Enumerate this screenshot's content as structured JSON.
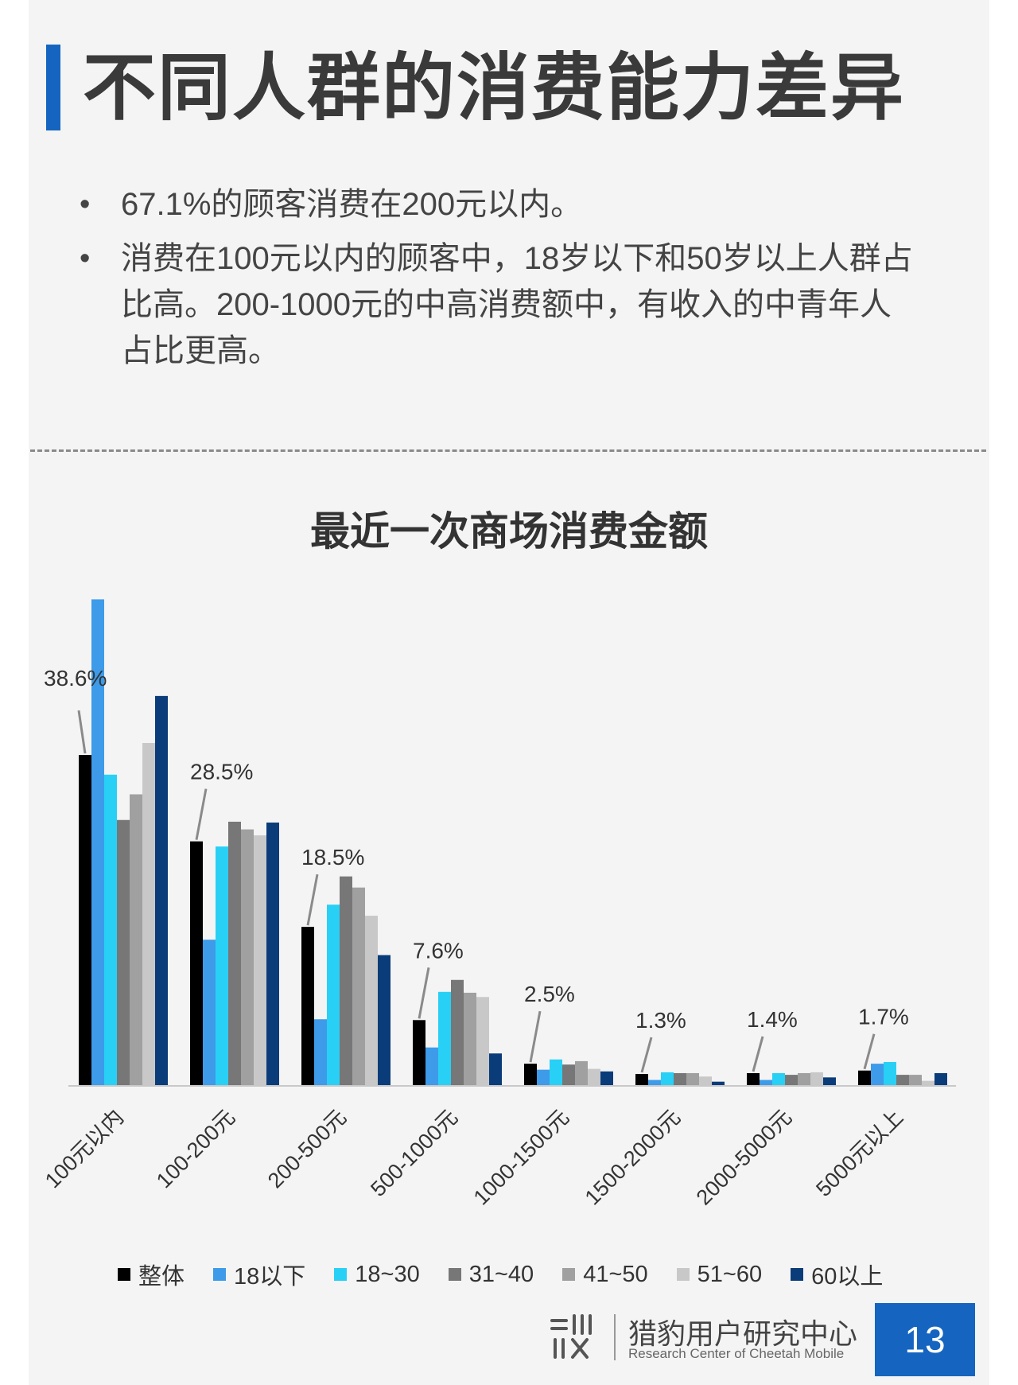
{
  "header": {
    "title": "不同人群的消费能力差异"
  },
  "bullets": [
    {
      "marker": "•",
      "text": "67.1%的顾客消费在200元以内。"
    },
    {
      "marker": "•",
      "text": "消费在100元以内的顾客中，18岁以下和50岁以上人群占比高。200-1000元的中高消费额中，有收入的中青年人占比更高。"
    }
  ],
  "chart_data": {
    "type": "bar",
    "title": "最近一次商场消费金额",
    "categories": [
      "100元以内",
      "100-200元",
      "200-500元",
      "500-1000元",
      "1000-1500元",
      "1500-2000元",
      "2000-5000元",
      "5000元以上"
    ],
    "overall_labels": [
      "38.6%",
      "28.5%",
      "18.5%",
      "7.6%",
      "2.5%",
      "1.3%",
      "1.4%",
      "1.7%"
    ],
    "xlabel": "",
    "ylabel": "",
    "ylim": [
      0,
      60
    ],
    "grid": false,
    "legend_position": "bottom",
    "series": [
      {
        "name": "整体",
        "color": "#000000",
        "values": [
          38.6,
          28.5,
          18.5,
          7.6,
          2.5,
          1.3,
          1.4,
          1.7
        ]
      },
      {
        "name": "18以下",
        "color": "#3d9be9",
        "values": [
          56.8,
          17.0,
          7.7,
          4.4,
          1.8,
          0.6,
          0.6,
          2.5
        ]
      },
      {
        "name": "18~30",
        "color": "#29d0f5",
        "values": [
          36.3,
          27.9,
          21.1,
          10.9,
          3.0,
          1.5,
          1.4,
          2.7
        ]
      },
      {
        "name": "31~40",
        "color": "#777777",
        "values": [
          31.0,
          30.8,
          24.4,
          12.3,
          2.4,
          1.4,
          1.2,
          1.2
        ]
      },
      {
        "name": "41~50",
        "color": "#a0a0a0",
        "values": [
          34.0,
          29.9,
          23.1,
          10.8,
          2.8,
          1.4,
          1.4,
          1.2
        ]
      },
      {
        "name": "51~60",
        "color": "#c8c8c8",
        "values": [
          40.0,
          29.2,
          19.8,
          10.3,
          1.9,
          1.0,
          1.5,
          0.5
        ]
      },
      {
        "name": "60以上",
        "color": "#0b3c7a",
        "values": [
          45.5,
          30.7,
          15.2,
          3.7,
          1.6,
          0.4,
          0.9,
          1.4
        ]
      }
    ]
  },
  "footer": {
    "org_cn": "猎豹用户研究中心",
    "org_en": "Research Center of Cheetah Mobile",
    "page_number": "13",
    "logo_icon": "cheetah-research-logo-icon"
  }
}
